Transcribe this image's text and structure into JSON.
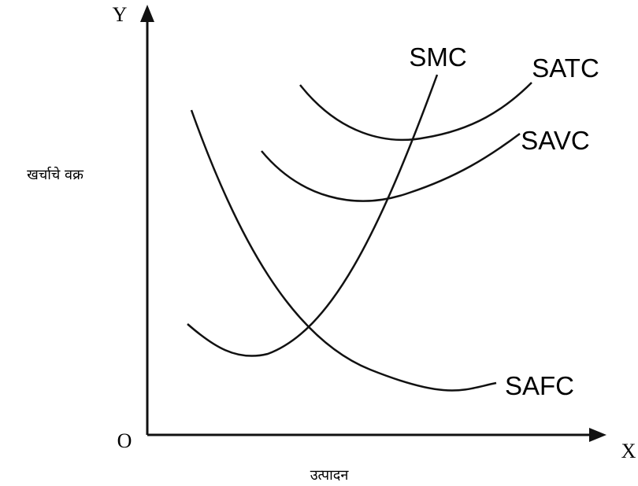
{
  "axes": {
    "y": "Y",
    "x": "X",
    "origin": "O",
    "y_label": "खर्चाचे वक्र",
    "x_label": "उत्पादन"
  },
  "curves": [
    {
      "label": "SMC"
    },
    {
      "label": "SATC"
    },
    {
      "label": "SAVC"
    },
    {
      "label": "SAFC"
    }
  ]
}
